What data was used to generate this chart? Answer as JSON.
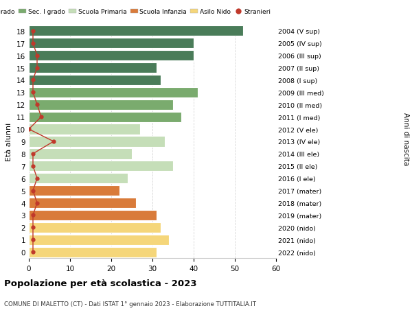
{
  "ages": [
    18,
    17,
    16,
    15,
    14,
    13,
    12,
    11,
    10,
    9,
    8,
    7,
    6,
    5,
    4,
    3,
    2,
    1,
    0
  ],
  "right_labels": [
    "2004 (V sup)",
    "2005 (IV sup)",
    "2006 (III sup)",
    "2007 (II sup)",
    "2008 (I sup)",
    "2009 (III med)",
    "2010 (II med)",
    "2011 (I med)",
    "2012 (V ele)",
    "2013 (IV ele)",
    "2014 (III ele)",
    "2015 (II ele)",
    "2016 (I ele)",
    "2017 (mater)",
    "2018 (mater)",
    "2019 (mater)",
    "2020 (nido)",
    "2021 (nido)",
    "2022 (nido)"
  ],
  "bar_values": [
    52,
    40,
    40,
    31,
    32,
    41,
    35,
    37,
    27,
    33,
    25,
    35,
    24,
    22,
    26,
    31,
    32,
    34,
    31
  ],
  "stranieri_values": [
    1,
    1,
    2,
    2,
    1,
    1,
    2,
    3,
    0,
    6,
    1,
    1,
    2,
    1,
    2,
    1,
    1,
    1,
    1
  ],
  "bar_colors": [
    "#4a7c59",
    "#4a7c59",
    "#4a7c59",
    "#4a7c59",
    "#4a7c59",
    "#7aab6e",
    "#7aab6e",
    "#7aab6e",
    "#c5deb8",
    "#c5deb8",
    "#c5deb8",
    "#c5deb8",
    "#c5deb8",
    "#d97b3a",
    "#d97b3a",
    "#d97b3a",
    "#f5d67a",
    "#f5d67a",
    "#f5d67a"
  ],
  "legend_labels": [
    "Sec. II grado",
    "Sec. I grado",
    "Scuola Primaria",
    "Scuola Infanzia",
    "Asilo Nido",
    "Stranieri"
  ],
  "legend_colors": [
    "#4a7c59",
    "#7aab6e",
    "#c5deb8",
    "#d97b3a",
    "#f5d67a",
    "#c0392b"
  ],
  "ylabel_left": "Età alunni",
  "ylabel_right": "Anni di nascita",
  "title": "Popolazione per età scolastica - 2023",
  "subtitle": "COMUNE DI MALETTO (CT) - Dati ISTAT 1° gennaio 2023 - Elaborazione TUTTITALIA.IT",
  "xlim": [
    0,
    60
  ],
  "xticks": [
    0,
    10,
    20,
    30,
    40,
    50,
    60
  ],
  "stranieri_color": "#c0392b",
  "bar_edgecolor": "white",
  "background_color": "#ffffff",
  "grid_color": "#cccccc"
}
